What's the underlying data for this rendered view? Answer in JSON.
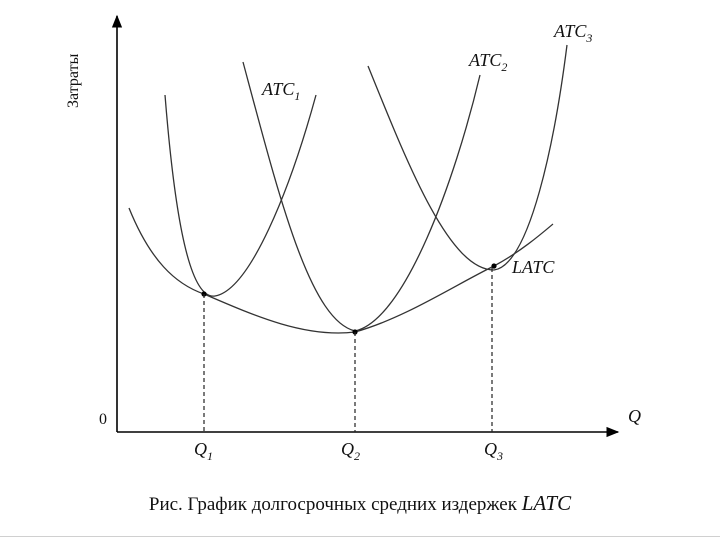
{
  "figure": {
    "caption_text": "Рис. График долгосрочных средних издержек ",
    "caption_emphasis": "LATC"
  },
  "axes": {
    "y_label": "Затраты",
    "x_label": "Q",
    "origin_label": "0",
    "x_ticks": [
      {
        "base": "Q",
        "sub": "1"
      },
      {
        "base": "Q",
        "sub": "2"
      },
      {
        "base": "Q",
        "sub": "3"
      }
    ]
  },
  "curves": {
    "atc1": {
      "base": "ATC",
      "sub": "1"
    },
    "atc2": {
      "base": "ATC",
      "sub": "2"
    },
    "atc3": {
      "base": "ATC",
      "sub": "3"
    },
    "latc": {
      "label": "LATC"
    }
  }
}
